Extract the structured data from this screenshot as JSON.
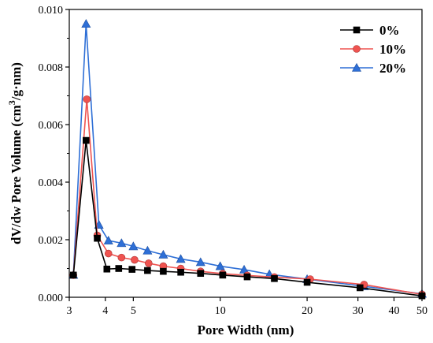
{
  "chart_data": {
    "type": "line",
    "xlabel": "Pore Width (nm)",
    "ylabel_prefix": "dV/dw Pore Volume (cm",
    "ylabel_sup": "3",
    "ylabel_suffix": "/g·nm)",
    "x_scale": "log",
    "xlim": [
      3,
      50
    ],
    "ylim": [
      0,
      0.01
    ],
    "x_ticks": [
      3,
      4,
      5,
      10,
      20,
      30,
      40,
      50
    ],
    "x_tick_labels": [
      "3",
      "4",
      "5",
      "10",
      "20",
      "30",
      "40",
      "50"
    ],
    "y_ticks": [
      0,
      0.002,
      0.004,
      0.006,
      0.008,
      0.01
    ],
    "y_tick_labels": [
      "0.000",
      "0.002",
      "0.004",
      "0.006",
      "0.008",
      "0.010"
    ],
    "grid": false,
    "legend_position": "top-right",
    "series": [
      {
        "name": "0%",
        "color": "#000000",
        "marker": "square",
        "x": [
          3.1,
          3.43,
          3.75,
          4.05,
          4.45,
          4.95,
          5.6,
          6.35,
          7.3,
          8.55,
          10.2,
          12.4,
          15.4,
          20.0,
          30.5,
          50.0
        ],
        "y": [
          0.00077,
          0.00545,
          0.00205,
          0.00098,
          0.001,
          0.00097,
          0.00093,
          0.0009,
          0.00087,
          0.00083,
          0.00077,
          0.00071,
          0.00065,
          0.00052,
          0.00033,
          5e-05
        ]
      },
      {
        "name": "10%",
        "color": "#ef5350",
        "marker": "circle",
        "x": [
          3.1,
          3.45,
          3.75,
          4.1,
          4.55,
          5.05,
          5.65,
          6.35,
          7.3,
          8.55,
          10.2,
          12.4,
          15.4,
          20.5,
          31.5,
          50.0
        ],
        "y": [
          0.00077,
          0.00688,
          0.00215,
          0.00152,
          0.00138,
          0.0013,
          0.00118,
          0.00108,
          0.001,
          0.0009,
          0.00082,
          0.00076,
          0.0007,
          0.00063,
          0.00044,
          0.0001
        ]
      },
      {
        "name": "20%",
        "color": "#2e6fd6",
        "marker": "triangle",
        "x": [
          3.1,
          3.43,
          3.8,
          4.1,
          4.55,
          5.0,
          5.6,
          6.35,
          7.3,
          8.55,
          10.0,
          12.1,
          14.8,
          20.0,
          31.5,
          50.0
        ],
        "y": [
          0.00078,
          0.0095,
          0.00252,
          0.00197,
          0.00188,
          0.00177,
          0.00162,
          0.00148,
          0.00133,
          0.00122,
          0.00108,
          0.00096,
          0.0008,
          0.00063,
          0.00038,
          0.00012
        ]
      }
    ]
  }
}
